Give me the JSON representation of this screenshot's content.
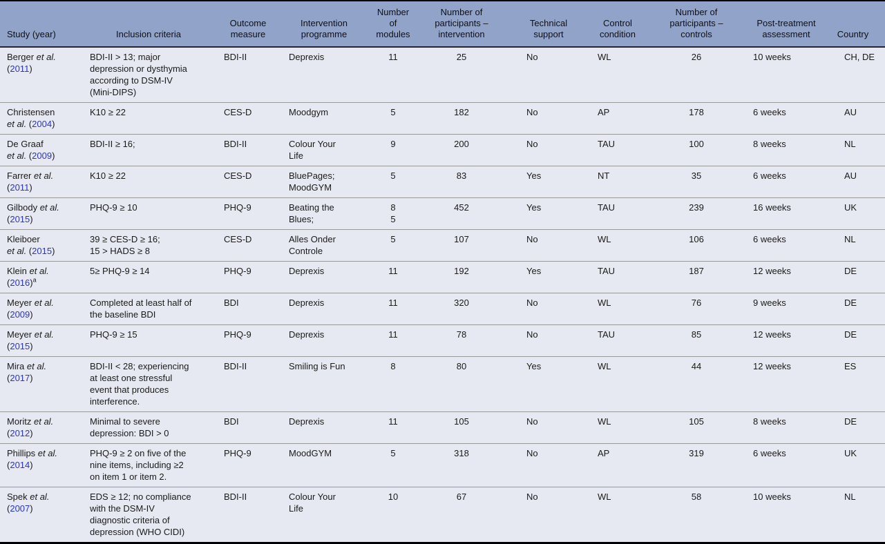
{
  "colors": {
    "header_bg": "#91a3c9",
    "row_bg": "#e7e9f2",
    "link": "#2733cc",
    "row_divider": "#999999",
    "border_dark": "#000000"
  },
  "table": {
    "columns": [
      {
        "label": [
          "Study (year)"
        ]
      },
      {
        "label": [
          "Inclusion criteria"
        ]
      },
      {
        "label": [
          "Outcome",
          "measure"
        ]
      },
      {
        "label": [
          "Intervention",
          "programme"
        ]
      },
      {
        "label": [
          "Number",
          "of",
          "modules"
        ]
      },
      {
        "label": [
          "Number of",
          "participants –",
          "intervention"
        ]
      },
      {
        "label": [
          "Technical",
          "support"
        ]
      },
      {
        "label": [
          "Control",
          "condition"
        ]
      },
      {
        "label": [
          "Number of",
          "participants –",
          "controls"
        ]
      },
      {
        "label": [
          "Post-treatment",
          "assessment"
        ]
      },
      {
        "label": [
          "Country"
        ]
      }
    ],
    "rows": [
      {
        "study": {
          "author": "Berger",
          "et_al": "et al.",
          "etal_on_line2": false,
          "year": "2011",
          "sup": ""
        },
        "inclusion": [
          "BDI-II > 13; major",
          "depression or dysthymia",
          "according to DSM-IV",
          "(Mini-DIPS)"
        ],
        "outcome": "BDI-II",
        "intervention": [
          "Deprexis"
        ],
        "modules": [
          "11"
        ],
        "n_intervention": "25",
        "tech_support": "No",
        "control": "WL",
        "n_controls": "26",
        "post_treatment": "10 weeks",
        "country": "CH, DE"
      },
      {
        "study": {
          "author": "Christensen",
          "et_al": "et al.",
          "etal_on_line2": true,
          "year": "2004",
          "sup": ""
        },
        "inclusion": [
          "K10 ≥ 22"
        ],
        "outcome": "CES-D",
        "intervention": [
          "Moodgym"
        ],
        "modules": [
          "5"
        ],
        "n_intervention": "182",
        "tech_support": "No",
        "control": "AP",
        "n_controls": "178",
        "post_treatment": "6 weeks",
        "country": "AU"
      },
      {
        "study": {
          "author": "De Graaf",
          "et_al": "et al.",
          "etal_on_line2": true,
          "year": "2009",
          "sup": ""
        },
        "inclusion": [
          "BDI-II ≥ 16;"
        ],
        "outcome": "BDI-II",
        "intervention": [
          "Colour Your",
          "Life"
        ],
        "modules": [
          "9"
        ],
        "n_intervention": "200",
        "tech_support": "No",
        "control": "TAU",
        "n_controls": "100",
        "post_treatment": "8 weeks",
        "country": "NL"
      },
      {
        "study": {
          "author": "Farrer",
          "et_al": "et al.",
          "etal_on_line2": false,
          "year": "2011",
          "sup": ""
        },
        "inclusion": [
          "K10 ≥ 22"
        ],
        "outcome": "CES-D",
        "intervention": [
          "BluePages;",
          "MoodGYM"
        ],
        "modules": [
          "5"
        ],
        "n_intervention": "83",
        "tech_support": "Yes",
        "control": "NT",
        "n_controls": "35",
        "post_treatment": "6 weeks",
        "country": "AU"
      },
      {
        "study": {
          "author": "Gilbody",
          "et_al": "et al.",
          "etal_on_line2": false,
          "year": "2015",
          "sup": ""
        },
        "inclusion": [
          "PHQ-9 ≥ 10"
        ],
        "outcome": "PHQ-9",
        "intervention": [
          "Beating the",
          "Blues;"
        ],
        "modules": [
          "8",
          "5"
        ],
        "n_intervention": "452",
        "tech_support": "Yes",
        "control": "TAU",
        "n_controls": "239",
        "post_treatment": "16 weeks",
        "country": "UK"
      },
      {
        "study": {
          "author": "Kleiboer",
          "et_al": "et al.",
          "etal_on_line2": true,
          "year": "2015",
          "sup": ""
        },
        "inclusion": [
          "39 ≥ CES-D ≥ 16;",
          "15 > HADS ≥ 8"
        ],
        "outcome": "CES-D",
        "intervention": [
          "Alles Onder",
          "Controle"
        ],
        "modules": [
          "5"
        ],
        "n_intervention": "107",
        "tech_support": "No",
        "control": "WL",
        "n_controls": "106",
        "post_treatment": "6 weeks",
        "country": "NL"
      },
      {
        "study": {
          "author": "Klein",
          "et_al": "et al.",
          "etal_on_line2": false,
          "year": "2016",
          "sup": "a"
        },
        "inclusion": [
          "5≥ PHQ-9 ≥ 14"
        ],
        "outcome": "PHQ-9",
        "intervention": [
          "Deprexis"
        ],
        "modules": [
          "11"
        ],
        "n_intervention": "192",
        "tech_support": "Yes",
        "control": "TAU",
        "n_controls": "187",
        "post_treatment": "12 weeks",
        "country": "DE"
      },
      {
        "study": {
          "author": "Meyer",
          "et_al": "et al.",
          "etal_on_line2": false,
          "year": "2009",
          "sup": ""
        },
        "inclusion": [
          "Completed at least half of",
          "the baseline BDI"
        ],
        "outcome": "BDI",
        "intervention": [
          "Deprexis"
        ],
        "modules": [
          "11"
        ],
        "n_intervention": "320",
        "tech_support": "No",
        "control": "WL",
        "n_controls": "76",
        "post_treatment": "9 weeks",
        "country": "DE"
      },
      {
        "study": {
          "author": "Meyer",
          "et_al": "et al.",
          "etal_on_line2": false,
          "year": "2015",
          "sup": ""
        },
        "inclusion": [
          "PHQ-9 ≥ 15"
        ],
        "outcome": "PHQ-9",
        "intervention": [
          "Deprexis"
        ],
        "modules": [
          "11"
        ],
        "n_intervention": "78",
        "tech_support": "No",
        "control": "TAU",
        "n_controls": "85",
        "post_treatment": "12 weeks",
        "country": "DE"
      },
      {
        "study": {
          "author": "Mira",
          "et_al": "et al.",
          "etal_on_line2": false,
          "year": "2017",
          "sup": ""
        },
        "inclusion": [
          "BDI-II < 28; experiencing",
          "at least one stressful",
          "event that produces",
          "interference."
        ],
        "outcome": "BDI-II",
        "intervention": [
          "Smiling is Fun"
        ],
        "modules": [
          "8"
        ],
        "n_intervention": "80",
        "tech_support": "Yes",
        "control": "WL",
        "n_controls": "44",
        "post_treatment": "12 weeks",
        "country": "ES"
      },
      {
        "study": {
          "author": "Moritz",
          "et_al": "et al.",
          "etal_on_line2": false,
          "year": "2012",
          "sup": ""
        },
        "inclusion": [
          "Minimal to severe",
          "depression: BDI > 0"
        ],
        "outcome": "BDI",
        "intervention": [
          "Deprexis"
        ],
        "modules": [
          "11"
        ],
        "n_intervention": "105",
        "tech_support": "No",
        "control": "WL",
        "n_controls": "105",
        "post_treatment": "8 weeks",
        "country": "DE"
      },
      {
        "study": {
          "author": "Phillips",
          "et_al": "et al.",
          "etal_on_line2": false,
          "year": "2014",
          "sup": ""
        },
        "inclusion": [
          "PHQ-9 ≥ 2 on five of the",
          "nine items, including ≥2",
          "on item 1 or item 2."
        ],
        "outcome": "PHQ-9",
        "intervention": [
          "MoodGYM"
        ],
        "modules": [
          "5"
        ],
        "n_intervention": "318",
        "tech_support": "No",
        "control": "AP",
        "n_controls": "319",
        "post_treatment": "6 weeks",
        "country": "UK"
      },
      {
        "study": {
          "author": "Spek",
          "et_al": "et al.",
          "etal_on_line2": false,
          "year": "2007",
          "sup": ""
        },
        "inclusion": [
          "EDS ≥ 12; no compliance",
          "with the DSM-IV",
          "diagnostic criteria of",
          "depression (WHO CIDI)"
        ],
        "outcome": "BDI-II",
        "intervention": [
          "Colour Your",
          "Life"
        ],
        "modules": [
          "10"
        ],
        "n_intervention": "67",
        "tech_support": "No",
        "control": "WL",
        "n_controls": "58",
        "post_treatment": "10 weeks",
        "country": "NL"
      }
    ]
  }
}
